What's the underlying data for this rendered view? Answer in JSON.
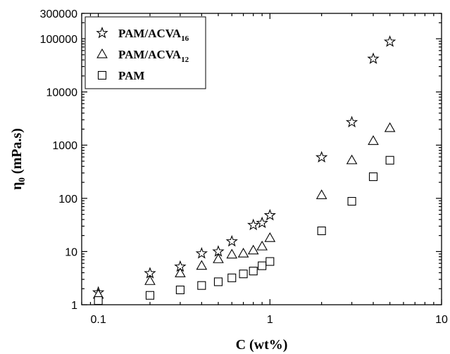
{
  "chart_data": {
    "type": "scatter",
    "xscale": "log",
    "yscale": "log",
    "xlim": [
      0.08,
      10
    ],
    "ylim": [
      1,
      300000
    ],
    "xlabel": "C (wt%)",
    "ylabel": "η0 (mPa.s)",
    "x_tick_labels": [
      "0.1",
      "1",
      "10"
    ],
    "y_tick_labels": [
      "1",
      "10",
      "100",
      "1000",
      "10000",
      "100000",
      "300000"
    ],
    "legend_position": "top-left",
    "grid": false,
    "series": [
      {
        "name": "PAM/ACVA16",
        "label_main": "PAM/ACVA",
        "label_sub": "16",
        "marker": "star",
        "x": [
          0.1,
          0.2,
          0.3,
          0.4,
          0.5,
          0.6,
          0.8,
          0.9,
          1.0,
          2.0,
          3.0,
          4.0,
          5.0
        ],
        "y": [
          1.7,
          3.9,
          5.2,
          9.2,
          10.0,
          15.5,
          31.5,
          34.5,
          48.0,
          590,
          2700,
          42000,
          88000
        ]
      },
      {
        "name": "PAM/ACVA12",
        "label_main": "PAM/ACVA",
        "label_sub": "12",
        "marker": "triangle",
        "x": [
          0.1,
          0.2,
          0.3,
          0.4,
          0.5,
          0.6,
          0.7,
          0.8,
          0.9,
          1.0,
          2.0,
          3.0,
          4.0,
          5.0
        ],
        "y": [
          1.55,
          2.8,
          3.9,
          5.4,
          7.2,
          8.8,
          9.2,
          10.5,
          12.5,
          18.0,
          115,
          520,
          1200,
          2100
        ]
      },
      {
        "name": "PAM",
        "label_main": "PAM",
        "label_sub": "",
        "marker": "square",
        "x": [
          0.1,
          0.2,
          0.3,
          0.4,
          0.5,
          0.6,
          0.7,
          0.8,
          0.9,
          1.0,
          2.0,
          3.0,
          4.0,
          5.0
        ],
        "y": [
          1.2,
          1.5,
          1.9,
          2.3,
          2.7,
          3.2,
          3.8,
          4.3,
          5.4,
          6.5,
          24.5,
          88,
          255,
          520
        ]
      }
    ]
  }
}
